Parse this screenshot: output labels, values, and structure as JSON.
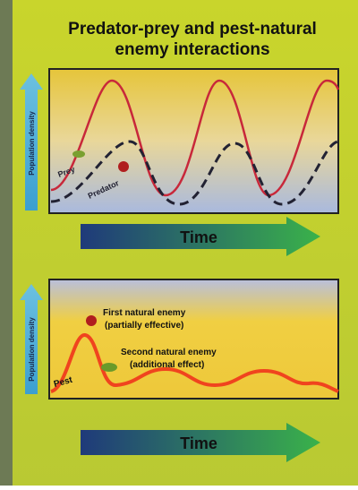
{
  "title": "Predator-prey and pest-natural enemy interactions",
  "top_panel": {
    "y_label": "Population density",
    "prey_label": "Prey",
    "predator_label": "Predator",
    "x_label": "Time"
  },
  "bottom_panel": {
    "y_label": "Population density",
    "first_enemy": "First natural enemy",
    "first_enemy_note": "(partially effective)",
    "second_enemy": "Second natural enemy",
    "second_enemy_note": "(additional effect)",
    "pest_label": "Pest",
    "x_label": "Time"
  }
}
